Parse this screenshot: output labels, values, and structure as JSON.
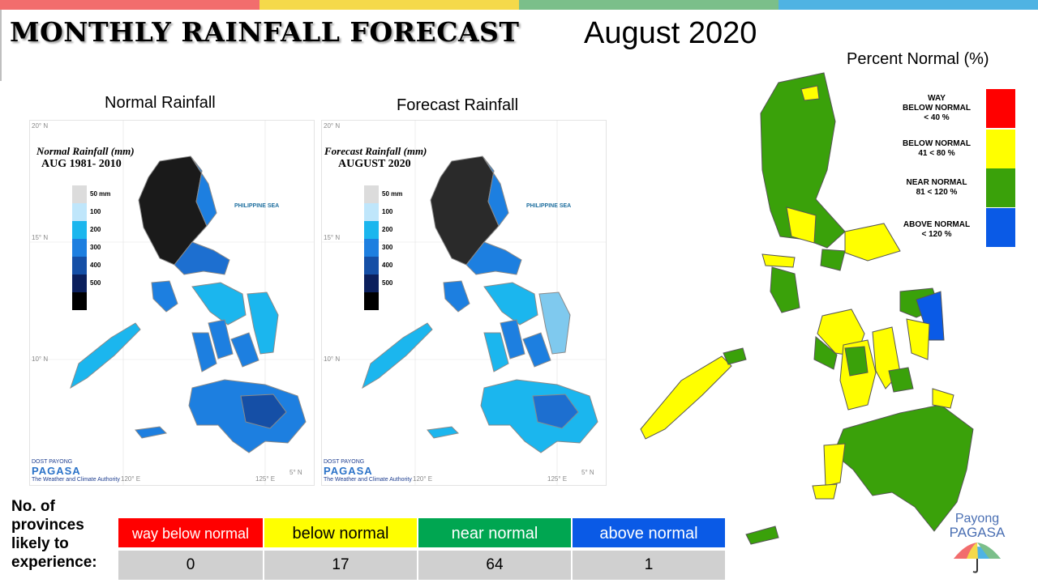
{
  "header": {
    "title": "MONTHLY RAINFALL FORECAST",
    "month": "August 2020",
    "topbar_colors": [
      "#f26d6d",
      "#f5d94a",
      "#7bbf8a",
      "#4fb3e3"
    ]
  },
  "normal_panel": {
    "title": "Normal Rainfall",
    "caption": "Normal Rainfall (mm)",
    "period": "AUG 1981- 2010"
  },
  "forecast_panel": {
    "title": "Forecast Rainfall",
    "caption": "Forecast Rainfall (mm)",
    "period": "AUGUST 2020"
  },
  "rainfall_scale": {
    "labels": [
      "50 mm",
      "100",
      "200",
      "300",
      "400",
      "500"
    ],
    "colors": [
      "#dcdcdc",
      "#bfe6fb",
      "#1bb6ee",
      "#1d7fe0",
      "#154fa6",
      "#0b1f5c",
      "#000000"
    ]
  },
  "map_labels": {
    "sea": "PHILIPPINE SEA",
    "lon_left": "120° E",
    "lon_right": "125° E",
    "lat_20": "20° N",
    "lat_15": "15° N",
    "lat_10": "10° N",
    "lat_5": "5° N"
  },
  "brand_small": {
    "dost": "DOST",
    "payong": "PAYONG",
    "pagasa": "PAGASA",
    "tagline": "The Weather and Climate Authority"
  },
  "percent_legend": {
    "title": "Percent Normal (%)",
    "items": [
      {
        "label_1": "WAY",
        "label_2": "BELOW NORMAL",
        "range": "< 40 %",
        "color": "#ff0000"
      },
      {
        "label_1": "BELOW NORMAL",
        "label_2": "",
        "range": "41 < 80 %",
        "color": "#ffff00"
      },
      {
        "label_1": "NEAR NORMAL",
        "label_2": "",
        "range": "81 < 120 %",
        "color": "#3aa10a"
      },
      {
        "label_1": "ABOVE NORMAL",
        "label_2": "",
        "range": "< 120 %",
        "color": "#0a5ae6"
      }
    ]
  },
  "provinces": {
    "label_lines": [
      "No. of",
      "provinces",
      "likely to",
      "experience:"
    ],
    "categories": [
      {
        "name": "way below normal",
        "count": "0",
        "bg": "#ff0000",
        "fg": "#ffffff"
      },
      {
        "name": "below normal",
        "count": "17",
        "bg": "#ffff00",
        "fg": "#000000"
      },
      {
        "name": "near normal",
        "count": "64",
        "bg": "#00a651",
        "fg": "#ffffff"
      },
      {
        "name": "above normal",
        "count": "1",
        "bg": "#0a5ae6",
        "fg": "#ffffff"
      }
    ]
  },
  "branding": {
    "line_1": "Payong",
    "line_2": "PAGASA"
  }
}
